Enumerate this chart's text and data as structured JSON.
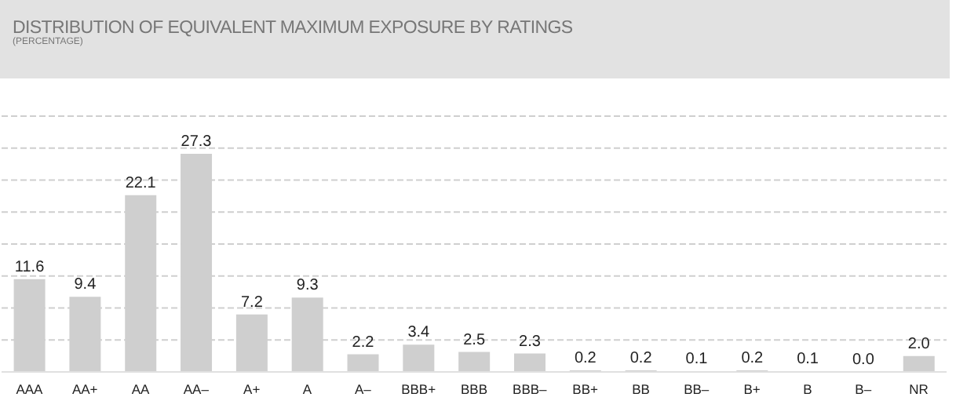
{
  "chart_data": {
    "type": "bar",
    "title": "DISTRIBUTION OF EQUIVALENT MAXIMUM EXPOSURE BY RATINGS",
    "subtitle": "(PERCENTAGE)",
    "categories": [
      "AAA",
      "AA+",
      "AA",
      "AA–",
      "A+",
      "A",
      "A–",
      "BBB+",
      "BBB",
      "BBB–",
      "BB+",
      "BB",
      "BB–",
      "B+",
      "B",
      "B–",
      "NR"
    ],
    "values": [
      11.6,
      9.4,
      22.1,
      27.3,
      7.2,
      9.3,
      2.2,
      3.4,
      2.5,
      2.3,
      0.2,
      0.2,
      0.1,
      0.2,
      0.1,
      0.0,
      2.0
    ],
    "value_labels": [
      "11.6",
      "9.4",
      "22.1",
      "27.3",
      "7.2",
      "9.3",
      "2.2",
      "3.4",
      "2.5",
      "2.3",
      "0.2",
      "0.2",
      "0.1",
      "0.2",
      "0.1",
      "0.0",
      "2.0"
    ],
    "color": "#cfcfcf",
    "grid": "y",
    "tick_labels": "x"
  }
}
